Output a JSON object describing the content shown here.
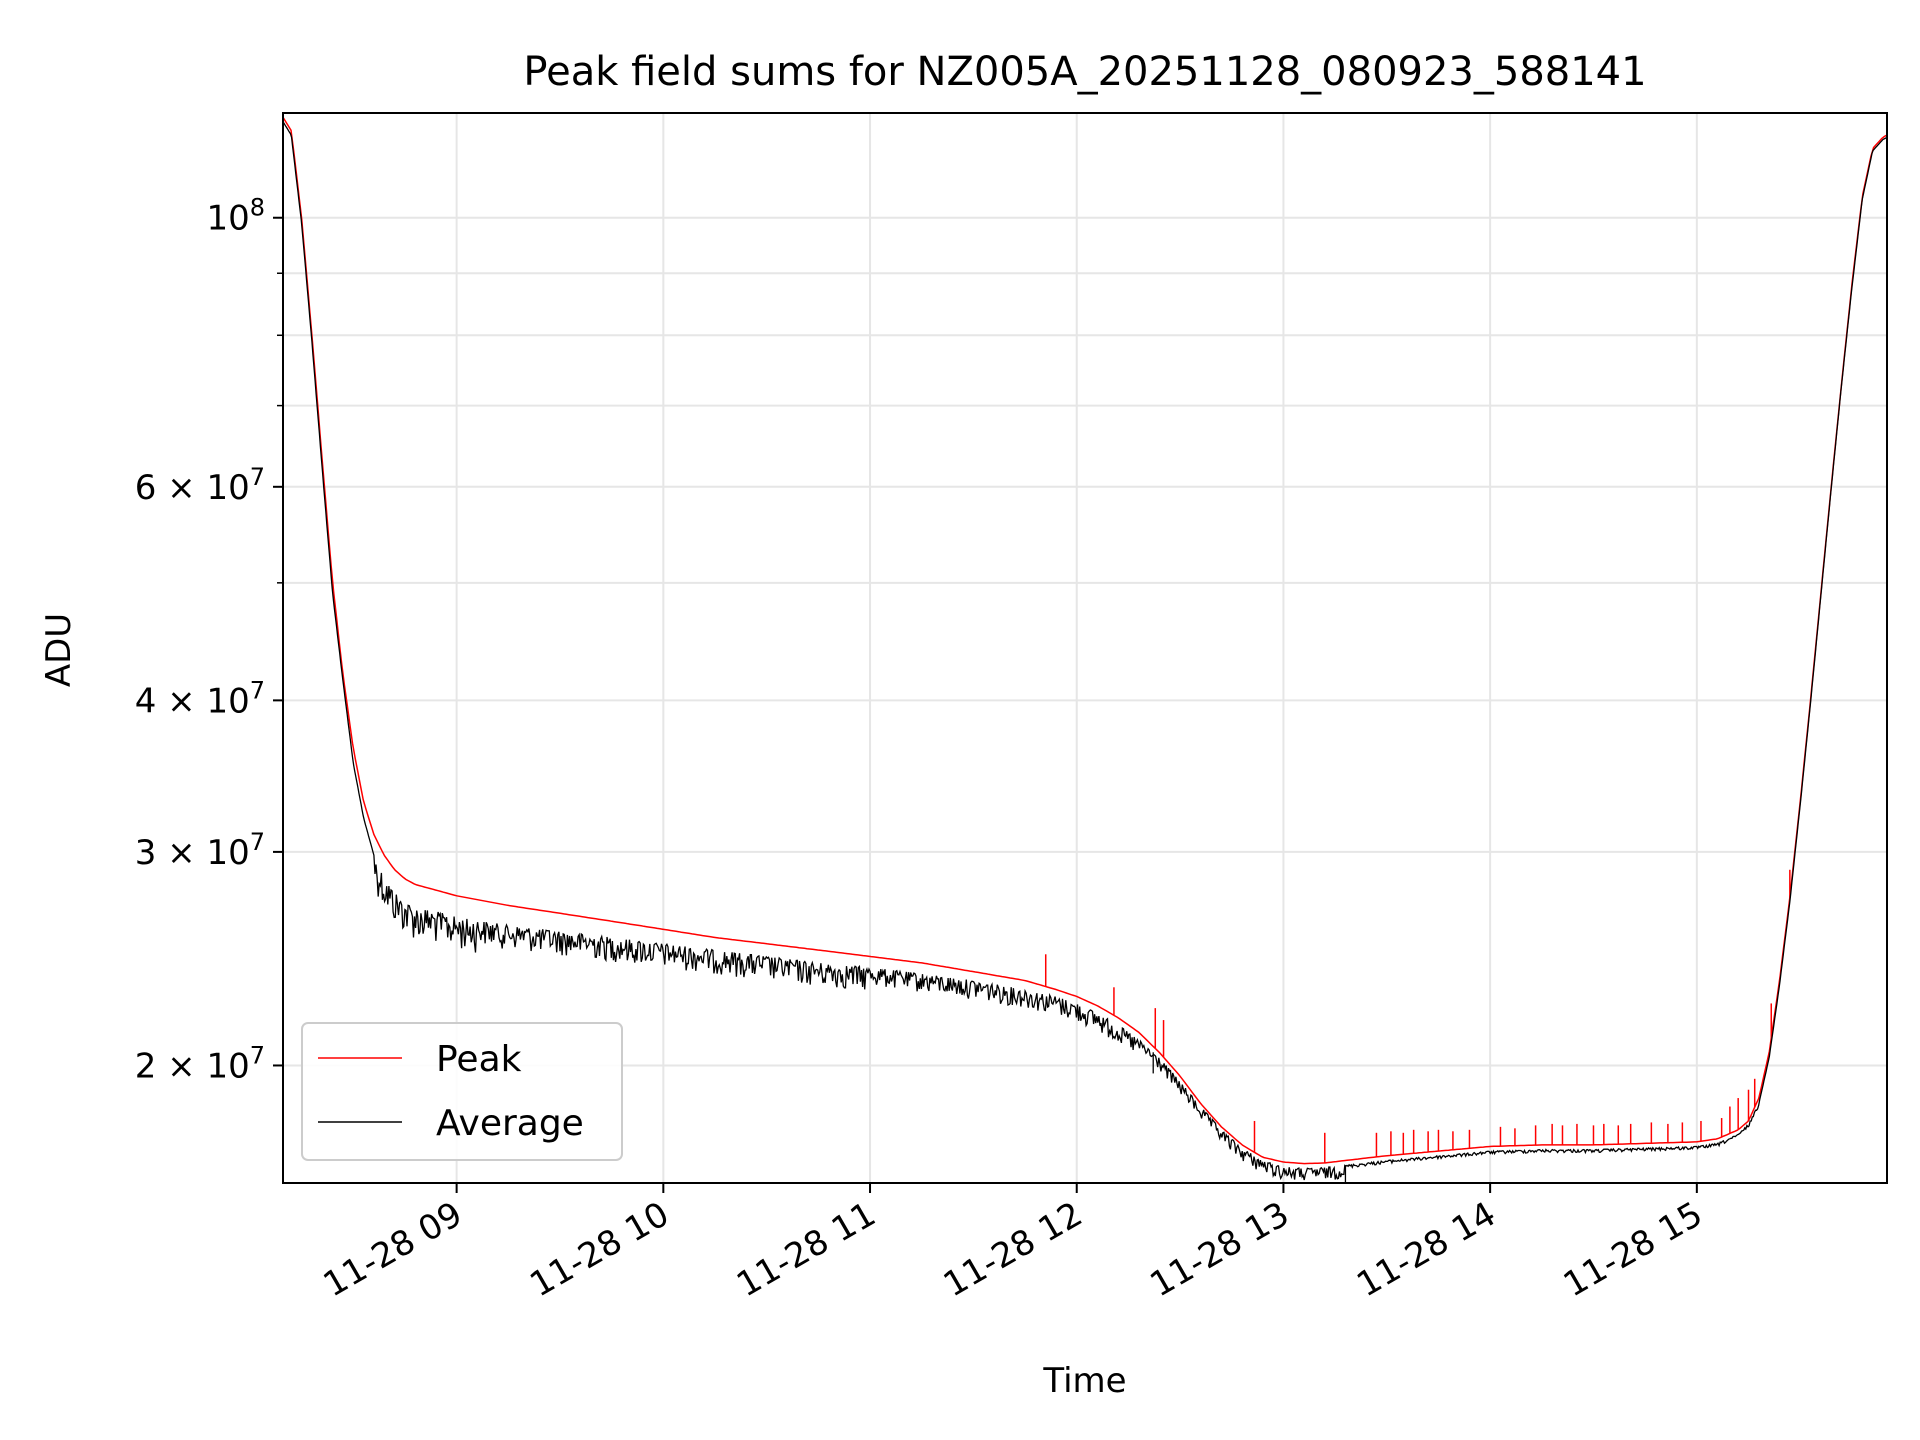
{
  "chart_data": {
    "type": "line",
    "title": "Peak field sums for NZ005A_20251128_080923_588141",
    "xlabel": "Time",
    "ylabel": "ADU",
    "yscale": "log",
    "grid": true,
    "legend_position": "lower-left",
    "xlim_hours": [
      8.16,
      15.92
    ],
    "ylim": [
      16000000,
      122000000
    ],
    "xticks": [
      {
        "hour": 9,
        "label": "11-28 09"
      },
      {
        "hour": 10,
        "label": "11-28 10"
      },
      {
        "hour": 11,
        "label": "11-28 11"
      },
      {
        "hour": 12,
        "label": "11-28 12"
      },
      {
        "hour": 13,
        "label": "11-28 13"
      },
      {
        "hour": 14,
        "label": "11-28 14"
      },
      {
        "hour": 15,
        "label": "11-28 15"
      }
    ],
    "yticks_major": [
      {
        "value": 20000000,
        "coef": "2",
        "exp": "7"
      },
      {
        "value": 30000000,
        "coef": "3",
        "exp": "7"
      },
      {
        "value": 40000000,
        "coef": "4",
        "exp": "7"
      },
      {
        "value": 60000000,
        "coef": "6",
        "exp": "7"
      },
      {
        "value": 100000000,
        "coef": "",
        "exp": "8"
      }
    ],
    "yticks_minor": [
      50000000,
      70000000,
      80000000,
      90000000
    ],
    "series": [
      {
        "name": "Peak",
        "color": "#ff0000",
        "x_hours": [
          8.16,
          8.2,
          8.25,
          8.3,
          8.35,
          8.4,
          8.45,
          8.5,
          8.55,
          8.6,
          8.65,
          8.7,
          8.75,
          8.8,
          8.9,
          9.0,
          9.25,
          9.5,
          9.75,
          10.0,
          10.25,
          10.5,
          10.75,
          11.0,
          11.25,
          11.5,
          11.75,
          11.9,
          12.0,
          12.1,
          12.2,
          12.3,
          12.4,
          12.5,
          12.6,
          12.7,
          12.8,
          12.9,
          13.0,
          13.1,
          13.2,
          13.3,
          13.5,
          13.75,
          14.0,
          14.25,
          14.5,
          14.75,
          15.0,
          15.1,
          15.2,
          15.25,
          15.3,
          15.35,
          15.4,
          15.45,
          15.5,
          15.55,
          15.6,
          15.65,
          15.7,
          15.75,
          15.8,
          15.85,
          15.9,
          15.92
        ],
        "values": [
          121000000,
          118000000,
          100000000,
          80000000,
          63000000,
          50000000,
          42000000,
          36500000,
          33000000,
          31000000,
          29800000,
          29000000,
          28500000,
          28200000,
          27900000,
          27600000,
          27100000,
          26700000,
          26300000,
          25900000,
          25500000,
          25200000,
          24900000,
          24600000,
          24300000,
          23900000,
          23500000,
          23100000,
          22800000,
          22400000,
          21900000,
          21300000,
          20500000,
          19600000,
          18600000,
          17800000,
          17200000,
          16800000,
          16650000,
          16600000,
          16620000,
          16700000,
          16850000,
          17000000,
          17150000,
          17200000,
          17200000,
          17250000,
          17300000,
          17400000,
          17700000,
          18000000,
          18800000,
          20500000,
          23500000,
          27500000,
          33000000,
          40000000,
          49000000,
          60000000,
          73000000,
          88000000,
          104000000,
          114000000,
          116500000,
          117000000
        ],
        "spikes": [
          {
            "hour": 11.85,
            "value": 24700000
          },
          {
            "hour": 12.18,
            "value": 23200000
          },
          {
            "hour": 12.38,
            "value": 22300000
          },
          {
            "hour": 12.42,
            "value": 21800000
          },
          {
            "hour": 12.86,
            "value": 18000000
          },
          {
            "hour": 13.2,
            "value": 17600000
          },
          {
            "hour": 13.45,
            "value": 17600000
          },
          {
            "hour": 13.52,
            "value": 17650000
          },
          {
            "hour": 13.58,
            "value": 17600000
          },
          {
            "hour": 13.63,
            "value": 17700000
          },
          {
            "hour": 13.7,
            "value": 17650000
          },
          {
            "hour": 13.75,
            "value": 17700000
          },
          {
            "hour": 13.82,
            "value": 17650000
          },
          {
            "hour": 13.9,
            "value": 17700000
          },
          {
            "hour": 14.05,
            "value": 17800000
          },
          {
            "hour": 14.12,
            "value": 17750000
          },
          {
            "hour": 14.22,
            "value": 17850000
          },
          {
            "hour": 14.3,
            "value": 17900000
          },
          {
            "hour": 14.35,
            "value": 17850000
          },
          {
            "hour": 14.42,
            "value": 17900000
          },
          {
            "hour": 14.5,
            "value": 17850000
          },
          {
            "hour": 14.55,
            "value": 17900000
          },
          {
            "hour": 14.62,
            "value": 17850000
          },
          {
            "hour": 14.68,
            "value": 17900000
          },
          {
            "hour": 14.78,
            "value": 17950000
          },
          {
            "hour": 14.86,
            "value": 17900000
          },
          {
            "hour": 14.93,
            "value": 17950000
          },
          {
            "hour": 15.02,
            "value": 18000000
          },
          {
            "hour": 15.12,
            "value": 18100000
          },
          {
            "hour": 15.16,
            "value": 18500000
          },
          {
            "hour": 15.2,
            "value": 18800000
          },
          {
            "hour": 15.25,
            "value": 19100000
          },
          {
            "hour": 15.28,
            "value": 19500000
          },
          {
            "hour": 15.36,
            "value": 22500000
          },
          {
            "hour": 15.45,
            "value": 29000000
          }
        ]
      },
      {
        "name": "Average",
        "color": "#000000",
        "x_hours": [
          8.16,
          8.2,
          8.25,
          8.3,
          8.35,
          8.4,
          8.45,
          8.5,
          8.55,
          8.6,
          8.65,
          8.7,
          8.75,
          8.8,
          8.9,
          9.0,
          9.25,
          9.5,
          9.75,
          10.0,
          10.25,
          10.5,
          10.75,
          11.0,
          11.25,
          11.5,
          11.75,
          11.9,
          12.0,
          12.1,
          12.2,
          12.3,
          12.4,
          12.5,
          12.6,
          12.7,
          12.8,
          12.9,
          13.0,
          13.1,
          13.2,
          13.3,
          13.5,
          13.75,
          14.0,
          14.25,
          14.5,
          14.75,
          15.0,
          15.1,
          15.2,
          15.25,
          15.3,
          15.35,
          15.4,
          15.45,
          15.5,
          15.55,
          15.6,
          15.65,
          15.7,
          15.75,
          15.8,
          15.85,
          15.9,
          15.92
        ],
        "values": [
          120000000,
          117000000,
          99000000,
          79000000,
          62000000,
          49000000,
          41500000,
          35500000,
          32000000,
          29800000,
          28600000,
          27800000,
          27300000,
          27000000,
          26800000,
          26500000,
          26100000,
          25800000,
          25500000,
          25200000,
          24900000,
          24600000,
          24300000,
          24100000,
          23800000,
          23500000,
          23100000,
          22800000,
          22500000,
          22100000,
          21600000,
          21000000,
          20300000,
          19400000,
          18500000,
          17700000,
          17100000,
          16700000,
          16500000,
          16450000,
          16480000,
          16550000,
          16700000,
          16850000,
          17000000,
          17050000,
          17050000,
          17100000,
          17150000,
          17250000,
          17550000,
          17900000,
          18600000,
          20300000,
          23300000,
          27300000,
          32800000,
          39800000,
          48800000,
          59800000,
          72800000,
          87500000,
          103500000,
          113500000,
          116000000,
          116500000
        ],
        "noise_band": [
          {
            "from_hour": 8.6,
            "to_hour": 9.1,
            "depth": 0.06
          },
          {
            "from_hour": 9.1,
            "to_hour": 11.0,
            "depth": 0.045
          },
          {
            "from_hour": 11.0,
            "to_hour": 12.3,
            "depth": 0.035
          },
          {
            "from_hour": 12.3,
            "to_hour": 13.3,
            "depth": 0.025
          },
          {
            "from_hour": 13.3,
            "to_hour": 15.3,
            "depth": 0.006
          }
        ],
        "dips": [
          {
            "hour": 12.37,
            "value": 19700000
          },
          {
            "hour": 13.3,
            "value": 15900000
          }
        ]
      }
    ]
  }
}
